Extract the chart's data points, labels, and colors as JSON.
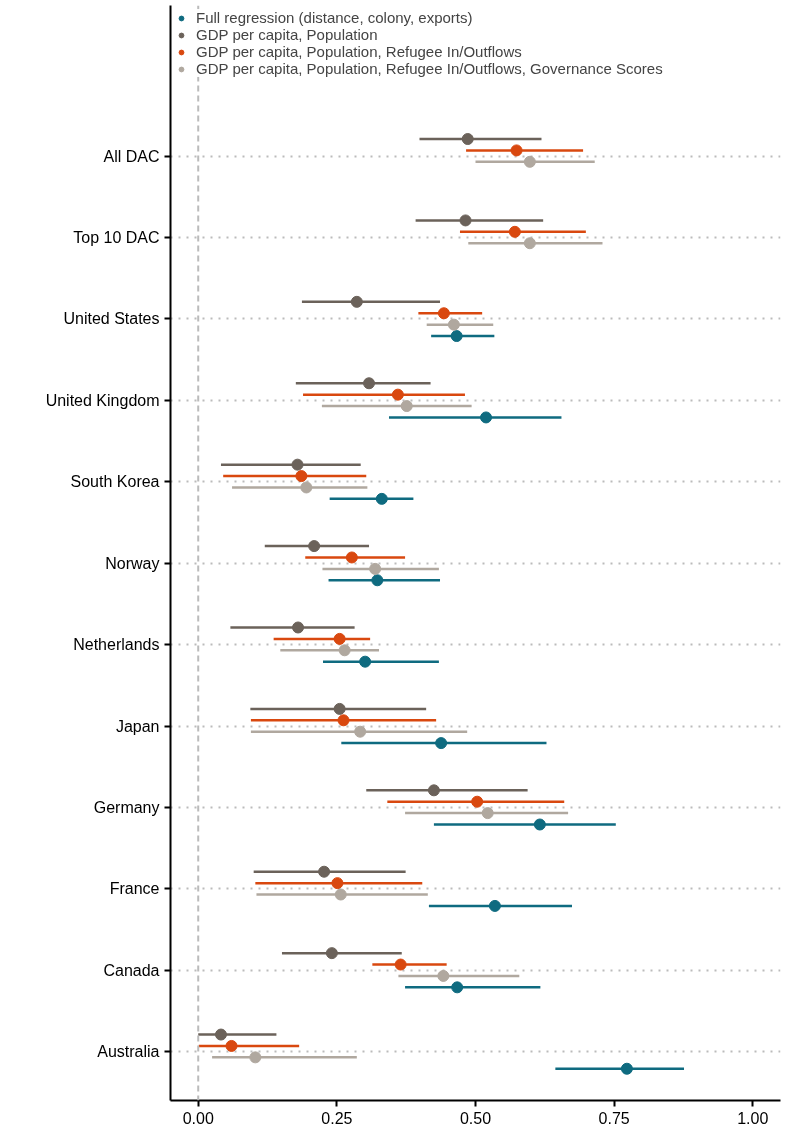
{
  "chart_data": {
    "type": "scatter",
    "orientation": "horizontal",
    "marker": "circle",
    "grid": "y",
    "legend": "top",
    "categories": [
      "All DAC",
      "Top 10 DAC",
      "United States",
      "United Kingdom",
      "South Korea",
      "Norway",
      "Netherlands",
      "Japan",
      "Germany",
      "France",
      "Canada",
      "Australia"
    ],
    "xlim": [
      -0.05,
      1.05
    ],
    "xticks": [
      {
        "value": 0,
        "label": "0.00"
      },
      {
        "value": 0.25,
        "label": "0.25"
      },
      {
        "value": 0.5,
        "label": "0.50"
      },
      {
        "value": 0.75,
        "label": "0.75"
      },
      {
        "value": 1,
        "label": "1.00"
      }
    ],
    "ref_lines": [
      {
        "axis": "x",
        "value": 0,
        "label": null,
        "color": "#bbbbbb",
        "line_style": "dashed"
      }
    ],
    "series": [
      {
        "name": "Full regression (distance, colony, exports)",
        "color": "#0f6b80",
        "values": [
          null,
          null,
          0.466,
          0.519,
          0.331,
          0.323,
          0.301,
          0.438,
          0.616,
          0.535,
          0.467,
          0.773
        ],
        "errors": [
          null,
          null,
          [
            0.42,
            0.534
          ],
          [
            0.344,
            0.655
          ],
          [
            0.237,
            0.388
          ],
          [
            0.235,
            0.436
          ],
          [
            0.225,
            0.434
          ],
          [
            0.258,
            0.628
          ],
          [
            0.425,
            0.753
          ],
          [
            0.416,
            0.674
          ],
          [
            0.373,
            0.617
          ],
          [
            0.644,
            0.876
          ]
        ]
      },
      {
        "name": "GDP per capita, Population",
        "color": "#6b625a",
        "values": [
          0.486,
          0.482,
          0.286,
          0.308,
          0.179,
          0.209,
          0.18,
          0.255,
          0.425,
          0.227,
          0.241,
          0.041
        ],
        "errors": [
          [
            0.399,
            0.619
          ],
          [
            0.392,
            0.622
          ],
          [
            0.187,
            0.436
          ],
          [
            0.176,
            0.419
          ],
          [
            0.041,
            0.293
          ],
          [
            0.12,
            0.308
          ],
          [
            0.058,
            0.282
          ],
          [
            0.094,
            0.411
          ],
          [
            0.303,
            0.594
          ],
          [
            0.1,
            0.374
          ],
          [
            0.151,
            0.367
          ],
          [
            0.0,
            0.141
          ]
        ]
      },
      {
        "name": "GDP per capita, Population, Refugee In/Outflows",
        "color": "#d9480f",
        "values": [
          0.574,
          0.571,
          0.443,
          0.36,
          0.186,
          0.277,
          0.255,
          0.262,
          0.503,
          0.251,
          0.365,
          0.06
        ],
        "errors": [
          [
            0.483,
            0.694
          ],
          [
            0.472,
            0.699
          ],
          [
            0.397,
            0.512
          ],
          [
            0.189,
            0.481
          ],
          [
            0.045,
            0.303
          ],
          [
            0.193,
            0.373
          ],
          [
            0.136,
            0.31
          ],
          [
            0.095,
            0.429
          ],
          [
            0.341,
            0.66
          ],
          [
            0.103,
            0.404
          ],
          [
            0.314,
            0.448
          ],
          [
            0.001,
            0.182
          ]
        ]
      },
      {
        "name": "GDP per capita, Population, Refugee In/Outflows, Governance Scores",
        "color": "#b0a89f",
        "values": [
          0.598,
          0.598,
          0.461,
          0.376,
          0.195,
          0.319,
          0.264,
          0.292,
          0.522,
          0.257,
          0.442,
          0.103
        ],
        "errors": [
          [
            0.5,
            0.715
          ],
          [
            0.487,
            0.729
          ],
          [
            0.412,
            0.532
          ],
          [
            0.223,
            0.493
          ],
          [
            0.061,
            0.305
          ],
          [
            0.224,
            0.434
          ],
          [
            0.148,
            0.326
          ],
          [
            0.095,
            0.485
          ],
          [
            0.373,
            0.667
          ],
          [
            0.105,
            0.414
          ],
          [
            0.361,
            0.579
          ],
          [
            0.025,
            0.286
          ]
        ]
      }
    ]
  }
}
